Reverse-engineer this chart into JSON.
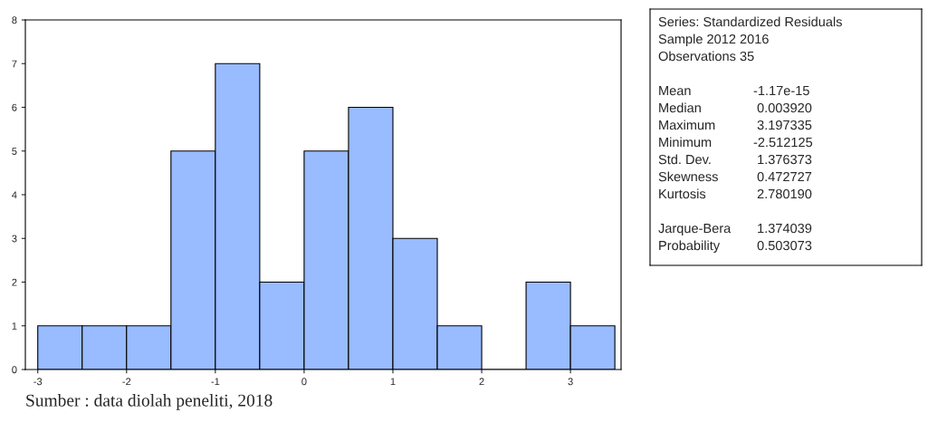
{
  "chart_data": [
    {
      "type": "histogram",
      "bins": [
        -3,
        -2.5,
        -2,
        -1.5,
        -1,
        -0.5,
        0,
        0.5,
        1,
        1.5,
        2,
        2.5,
        3,
        3.5
      ],
      "values": [
        1,
        1,
        1,
        5,
        7,
        2,
        5,
        6,
        3,
        1,
        0,
        2,
        1
      ],
      "color": "#99bbff",
      "xlim": [
        -3.14,
        3.57
      ],
      "xticks": [
        -3,
        -2,
        -1,
        0,
        1,
        2,
        3
      ],
      "ylim": [
        0,
        8
      ],
      "yticks": [
        0,
        1,
        2,
        3,
        4,
        5,
        6,
        7,
        8
      ],
      "grid": false,
      "annotations": [
        "Sumber : data diolah peneliti, 2018"
      ]
    },
    {
      "type": "other",
      "annotations": [
        "Series: Standardized Residuals\nSample 2012 2016\nObservations 35",
        "Mean\t-1.17e-15\nMedian\t 0.003920\nMaximum\t 3.197335\nMinimum\t-2.512125\nStd. Dev.\t 1.376373\nSkewness\t 0.472727\nKurtosis\t 2.780190",
        "Jarque-Bera\t 1.374039\nProbability\t 0.503073"
      ]
    }
  ]
}
